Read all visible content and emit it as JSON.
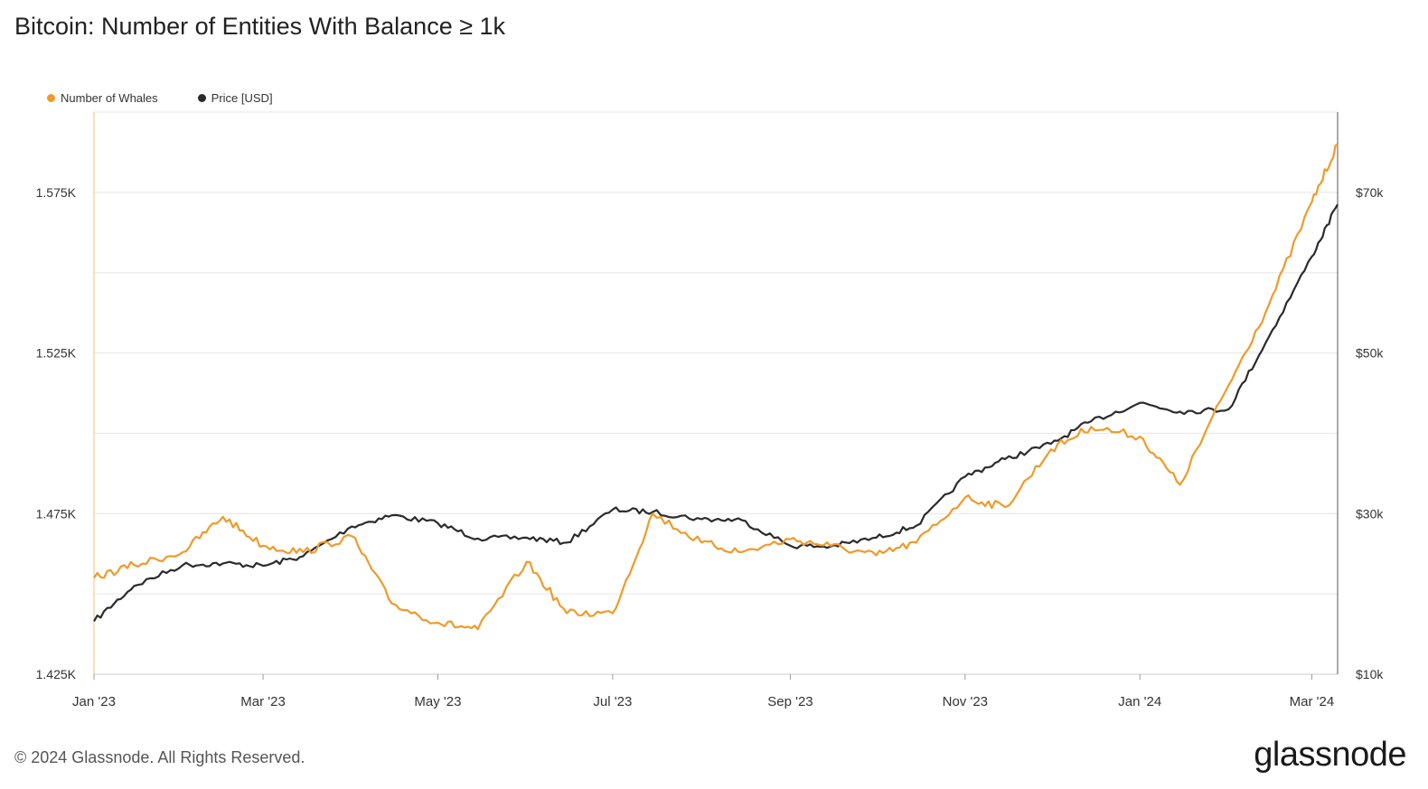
{
  "title": "Bitcoin: Number of Entities With Balance ≥ 1k",
  "footer": "© 2024 Glassnode. All Rights Reserved.",
  "brand": "glassnode",
  "colors": {
    "whales": "#f09a2a",
    "price": "#2b2b2b",
    "grid": "#e6e6e6"
  },
  "chart_data": {
    "type": "line",
    "title": "Bitcoin: Number of Entities With Balance ≥ 1k",
    "legend": [
      "Number of Whales",
      "Price [USD]"
    ],
    "legend_position": "top-left",
    "grid": true,
    "x_ticks": [
      "Jan '23",
      "Mar '23",
      "May '23",
      "Jul '23",
      "Sep '23",
      "Nov '23",
      "Jan '24",
      "Mar '24"
    ],
    "y_left": {
      "ticks": [
        "1.425K",
        "1.475K",
        "1.525K",
        "1.575K"
      ],
      "range": [
        1425,
        1600
      ]
    },
    "y_right": {
      "ticks": [
        "$10k",
        "$30k",
        "$50k",
        "$70k"
      ],
      "range": [
        10000,
        80000
      ]
    },
    "x": [
      "2023-01-01",
      "2023-01-15",
      "2023-02-01",
      "2023-02-15",
      "2023-03-01",
      "2023-03-15",
      "2023-04-01",
      "2023-04-15",
      "2023-05-01",
      "2023-05-15",
      "2023-06-01",
      "2023-06-15",
      "2023-07-01",
      "2023-07-15",
      "2023-08-01",
      "2023-08-15",
      "2023-09-01",
      "2023-09-15",
      "2023-10-01",
      "2023-10-15",
      "2023-11-01",
      "2023-11-15",
      "2023-12-01",
      "2023-12-15",
      "2024-01-01",
      "2024-01-15",
      "2024-02-01",
      "2024-02-15",
      "2024-03-01",
      "2024-03-10"
    ],
    "series": [
      {
        "name": "Number of Whales",
        "axis": "left",
        "values": [
          1455,
          1459,
          1463,
          1474,
          1465,
          1463,
          1468,
          1447,
          1441,
          1439,
          1460,
          1444,
          1444,
          1475,
          1466,
          1463,
          1467,
          1465,
          1462,
          1466,
          1480,
          1477,
          1495,
          1502,
          1499,
          1484,
          1515,
          1540,
          1572,
          1590
        ]
      },
      {
        "name": "Price [USD]",
        "axis": "right",
        "values": [
          16600,
          21000,
          23600,
          23800,
          23500,
          24700,
          28400,
          29800,
          28800,
          26900,
          27000,
          26400,
          30500,
          30200,
          29300,
          29200,
          26000,
          25900,
          27000,
          28500,
          34600,
          36800,
          38700,
          41500,
          43800,
          42700,
          43000,
          52000,
          62000,
          68500
        ]
      }
    ]
  }
}
